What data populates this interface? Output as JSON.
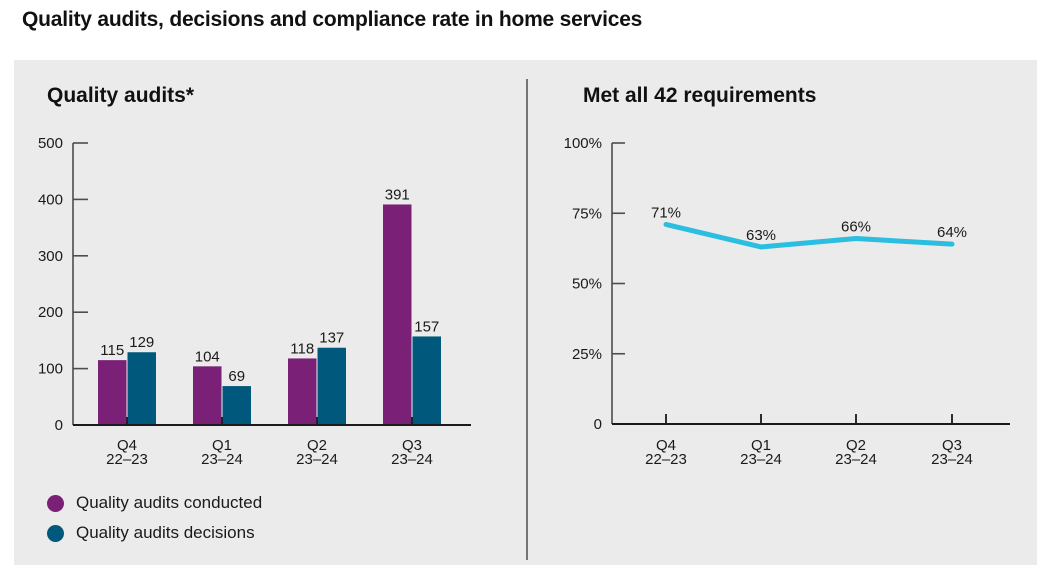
{
  "page_title": "Quality audits, decisions and compliance rate in home services",
  "colors": {
    "purple": "#7A2076",
    "teal": "#00587C",
    "cyan": "#2BBEE0",
    "panel_bg": "#EBEBEB",
    "divider": "#757575",
    "axis_gray": "#4D4D4D",
    "axis_black": "#1A1A1A"
  },
  "legend": {
    "items": [
      {
        "label": "Quality audits conducted",
        "color": "#7A2076"
      },
      {
        "label": "Quality audits decisions",
        "color": "#00587C"
      }
    ]
  },
  "chart_data": [
    {
      "type": "bar",
      "title": "Quality audits*",
      "categories": [
        [
          "Q4",
          "22–23"
        ],
        [
          "Q1",
          "23–24"
        ],
        [
          "Q2",
          "23–24"
        ],
        [
          "Q3",
          "23–24"
        ]
      ],
      "series": [
        {
          "name": "Quality audits conducted",
          "color": "#7A2076",
          "values": [
            115,
            104,
            118,
            391
          ]
        },
        {
          "name": "Quality audits decisions",
          "color": "#00587C",
          "values": [
            129,
            69,
            137,
            157
          ]
        }
      ],
      "ylim": [
        0,
        500
      ],
      "yticks": [
        0,
        100,
        200,
        300,
        400,
        500
      ],
      "grid": false,
      "legend_position": "bottom-left",
      "value_labels": true
    },
    {
      "type": "line",
      "title": "Met all 42 requirements",
      "categories": [
        [
          "Q4",
          "22–23"
        ],
        [
          "Q1",
          "23–24"
        ],
        [
          "Q2",
          "23–24"
        ],
        [
          "Q3",
          "23–24"
        ]
      ],
      "series": [
        {
          "name": "Met all 42 requirements",
          "color": "#2BBEE0",
          "values": [
            71,
            63,
            66,
            64
          ],
          "point_labels": [
            "71%",
            "63%",
            "66%",
            "64%"
          ]
        }
      ],
      "ylim": [
        0,
        100
      ],
      "yticks": [
        {
          "value": 0,
          "label": "0"
        },
        {
          "value": 25,
          "label": "25%"
        },
        {
          "value": 50,
          "label": "50%"
        },
        {
          "value": 75,
          "label": "75%"
        },
        {
          "value": 100,
          "label": "100%"
        }
      ],
      "grid": false
    }
  ]
}
